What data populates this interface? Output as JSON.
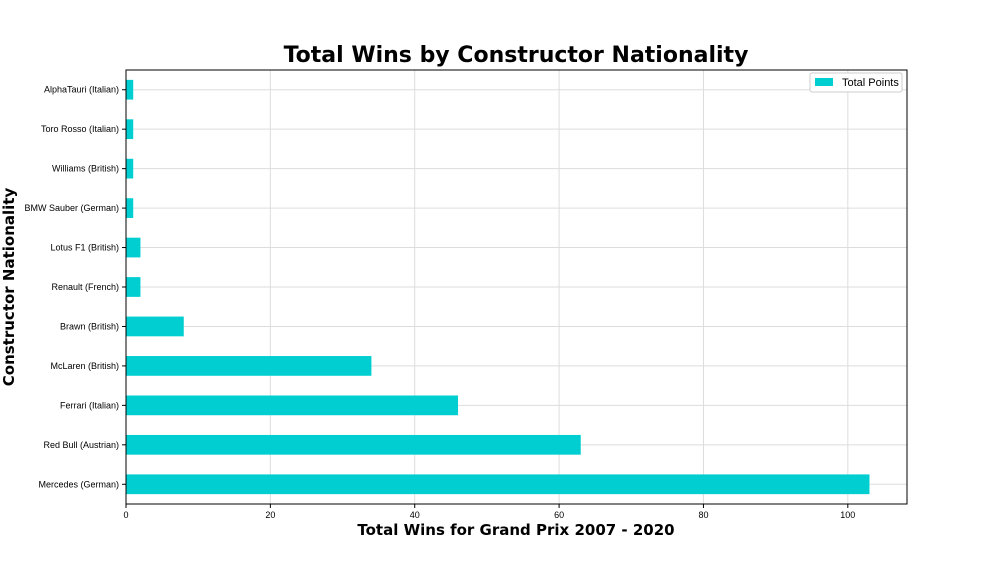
{
  "chart_data": {
    "type": "bar",
    "orientation": "horizontal",
    "title": "Total Wins by Constructor Nationality",
    "xlabel": "Total Wins for Grand Prix 2007 - 2020",
    "ylabel": "Constructor Nationality",
    "categories": [
      "Mercedes (German)",
      "Red Bull (Austrian)",
      "Ferrari (Italian)",
      "McLaren (British)",
      "Brawn (British)",
      "Renault (French)",
      "Lotus F1 (British)",
      "BMW Sauber (German)",
      "Williams (British)",
      "Toro Rosso (Italian)",
      "AlphaTauri (Italian)"
    ],
    "series": [
      {
        "name": "Total Points",
        "values": [
          103,
          63,
          46,
          34,
          8,
          2,
          2,
          1,
          1,
          1,
          1
        ]
      }
    ],
    "xlim": [
      0,
      108.2
    ],
    "xticks": [
      "0",
      "20",
      "40",
      "60",
      "80",
      "100"
    ],
    "grid": true,
    "legend_position": "top-right",
    "bar_color": "#00CED1"
  }
}
